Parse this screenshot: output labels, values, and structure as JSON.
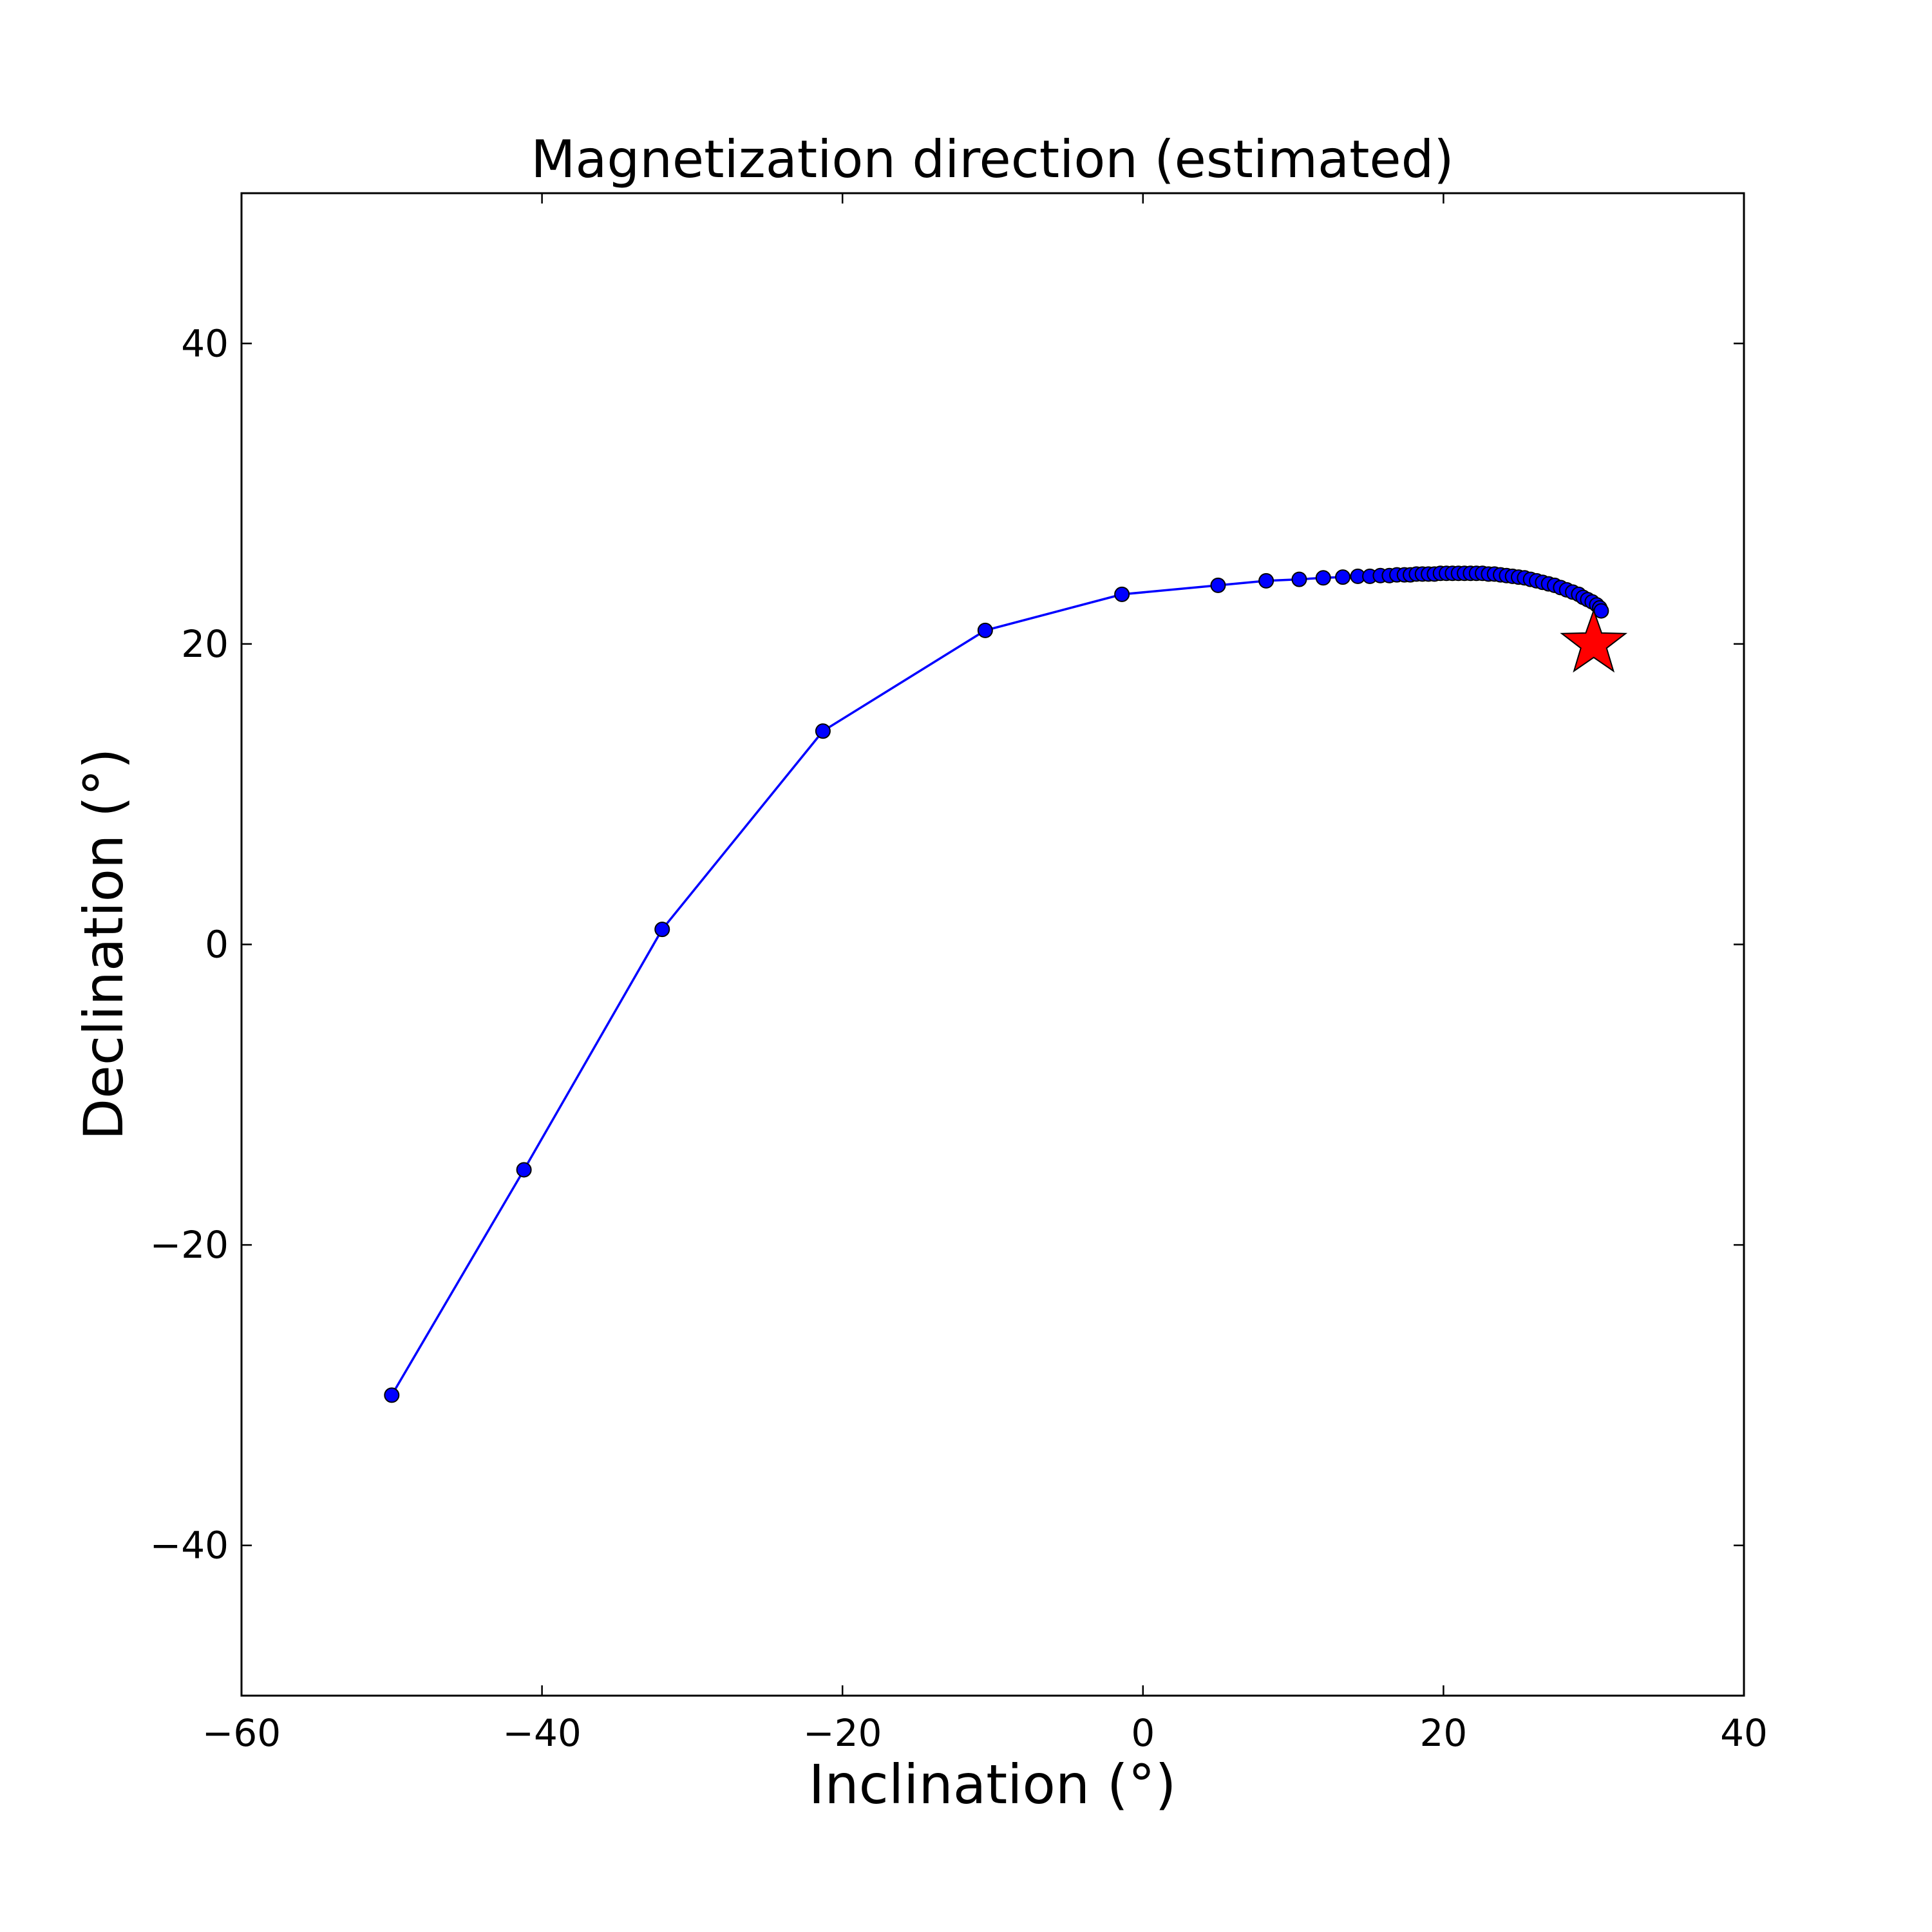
{
  "chart_data": {
    "type": "line",
    "title": "Magnetization direction (estimated)",
    "xlabel": "Inclination (°)",
    "ylabel": "Declination (°)",
    "xlim": [
      -60,
      40
    ],
    "ylim": [
      -50,
      50
    ],
    "xticks": [
      -60,
      -40,
      -20,
      0,
      20,
      40
    ],
    "xtick_labels": [
      "−60",
      "−40",
      "−20",
      "0",
      "20",
      "40"
    ],
    "yticks": [
      -40,
      -20,
      0,
      20,
      40
    ],
    "ytick_labels": [
      "−40",
      "−20",
      "0",
      "20",
      "40"
    ],
    "grid": false,
    "series": [
      {
        "marker": "circle",
        "line_color": "#0000ff",
        "marker_color": "#0000ff",
        "x": [
          -50.0,
          -41.2,
          -32.0,
          -21.3,
          -10.5,
          -1.4,
          5.0,
          8.2,
          10.4,
          12.0,
          13.3,
          14.3,
          15.1,
          15.8,
          16.4,
          16.9,
          17.4,
          17.8,
          18.2,
          18.6,
          19.0,
          19.4,
          19.8,
          20.2,
          20.6,
          21.0,
          21.4,
          21.8,
          22.2,
          22.6,
          23.0,
          23.4,
          23.8,
          24.2,
          24.6,
          25.0,
          25.4,
          25.8,
          26.2,
          26.6,
          27.0,
          27.4,
          27.8,
          28.2,
          28.6,
          29.0,
          29.3,
          29.6,
          29.9,
          30.2,
          30.4,
          30.5
        ],
        "y": [
          -30.0,
          -15.0,
          1.0,
          14.2,
          20.9,
          23.3,
          23.9,
          24.2,
          24.3,
          24.4,
          24.45,
          24.5,
          24.5,
          24.55,
          24.55,
          24.6,
          24.6,
          24.6,
          24.65,
          24.65,
          24.65,
          24.65,
          24.7,
          24.7,
          24.7,
          24.7,
          24.7,
          24.7,
          24.7,
          24.7,
          24.65,
          24.65,
          24.6,
          24.55,
          24.5,
          24.45,
          24.4,
          24.3,
          24.2,
          24.1,
          24.0,
          23.9,
          23.75,
          23.6,
          23.45,
          23.3,
          23.1,
          22.95,
          22.8,
          22.6,
          22.4,
          22.2
        ]
      },
      {
        "marker": "star",
        "marker_color": "#ff0000",
        "x": [
          30.0
        ],
        "y": [
          20.0
        ]
      }
    ]
  }
}
